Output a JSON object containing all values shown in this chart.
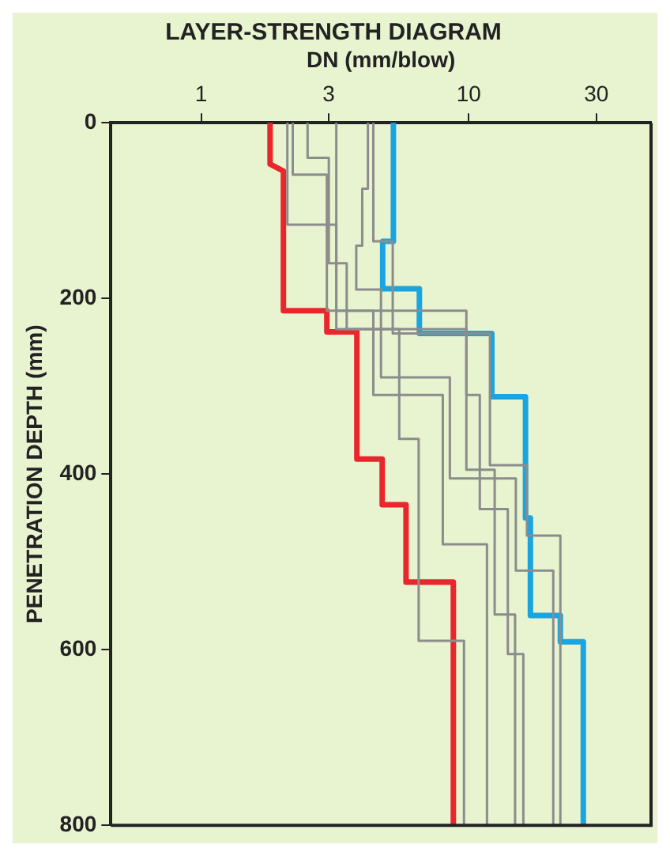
{
  "chart_data": {
    "type": "line",
    "title": "LAYER-STRENGTH DIAGRAM",
    "xlabel": "DN (mm/blow)",
    "ylabel": "PENETRATION DEPTH (mm)",
    "log": "x",
    "xlim": [
      0.46,
      48
    ],
    "xticks": [
      1,
      3,
      10,
      30
    ],
    "ylim": [
      800,
      0
    ],
    "yticks": [
      0,
      200,
      400,
      600,
      800
    ],
    "grid": false,
    "legend": false,
    "marker": "none",
    "line_style": "solid",
    "series": [
      {
        "color": "#8c8c8c",
        "x": [
          2.1,
          2.1,
          3.2,
          3.2,
          5.5,
          5.5,
          6.5,
          6.5,
          9.6,
          9.6
        ],
        "values": [
          0,
          116,
          116,
          235,
          235,
          360,
          360,
          590,
          590,
          800
        ]
      },
      {
        "color": "#8c8c8c",
        "x": [
          2.2,
          2.2,
          2.95,
          2.95,
          4.4,
          4.4,
          8.0,
          8.0,
          11.7,
          11.7
        ],
        "values": [
          0,
          59,
          59,
          214,
          214,
          310,
          310,
          480,
          480,
          800
        ]
      },
      {
        "color": "#8c8c8c",
        "x": [
          2.5,
          2.5,
          3.0,
          3.0,
          3.5,
          3.5,
          9.8,
          9.8,
          12.5,
          12.5,
          14.9,
          14.9
        ],
        "values": [
          0,
          40,
          40,
          160,
          160,
          235,
          235,
          395,
          395,
          560,
          560,
          800
        ]
      },
      {
        "color": "#8c8c8c",
        "x": [
          3.2,
          3.2,
          9.8,
          9.8,
          11.0,
          11.0,
          14.0,
          14.0,
          16.0,
          16.0
        ],
        "values": [
          0,
          214,
          214,
          310,
          310,
          440,
          440,
          605,
          605,
          800
        ]
      },
      {
        "color": "#8c8c8c",
        "x": [
          4.2,
          4.2,
          4.0,
          4.0,
          3.8,
          3.8,
          4.7,
          4.7,
          8.5,
          8.5,
          15.0,
          15.0,
          20.7,
          20.7
        ],
        "values": [
          0,
          75,
          75,
          140,
          140,
          190,
          190,
          290,
          290,
          405,
          405,
          510,
          510,
          800
        ]
      },
      {
        "color": "#8c8c8c",
        "x": [
          4.4,
          4.4,
          5.2,
          5.2,
          12.0,
          12.0,
          16.5,
          16.5,
          22.0,
          22.0
        ],
        "values": [
          0,
          135,
          135,
          240,
          240,
          390,
          390,
          470,
          470,
          800
        ]
      },
      {
        "color": "#e8262b",
        "x": [
          1.81,
          1.81,
          2.03,
          2.03,
          2.95,
          2.95,
          3.82,
          3.82,
          4.75,
          4.75,
          5.83,
          5.83,
          8.76,
          8.76
        ],
        "values": [
          0,
          47,
          55,
          214,
          214,
          238,
          238,
          383,
          383,
          435,
          435,
          523,
          523,
          800
        ]
      },
      {
        "color": "#1aa5e0",
        "x": [
          5.23,
          5.23,
          4.77,
          4.77,
          6.54,
          6.54,
          12.2,
          12.2,
          16.3,
          16.3,
          17.0,
          17.0,
          22.0,
          22.0,
          26.8,
          26.8
        ],
        "values": [
          0,
          135,
          135,
          189,
          189,
          240,
          240,
          312,
          312,
          450,
          450,
          561,
          561,
          591,
          591,
          800
        ]
      }
    ]
  }
}
